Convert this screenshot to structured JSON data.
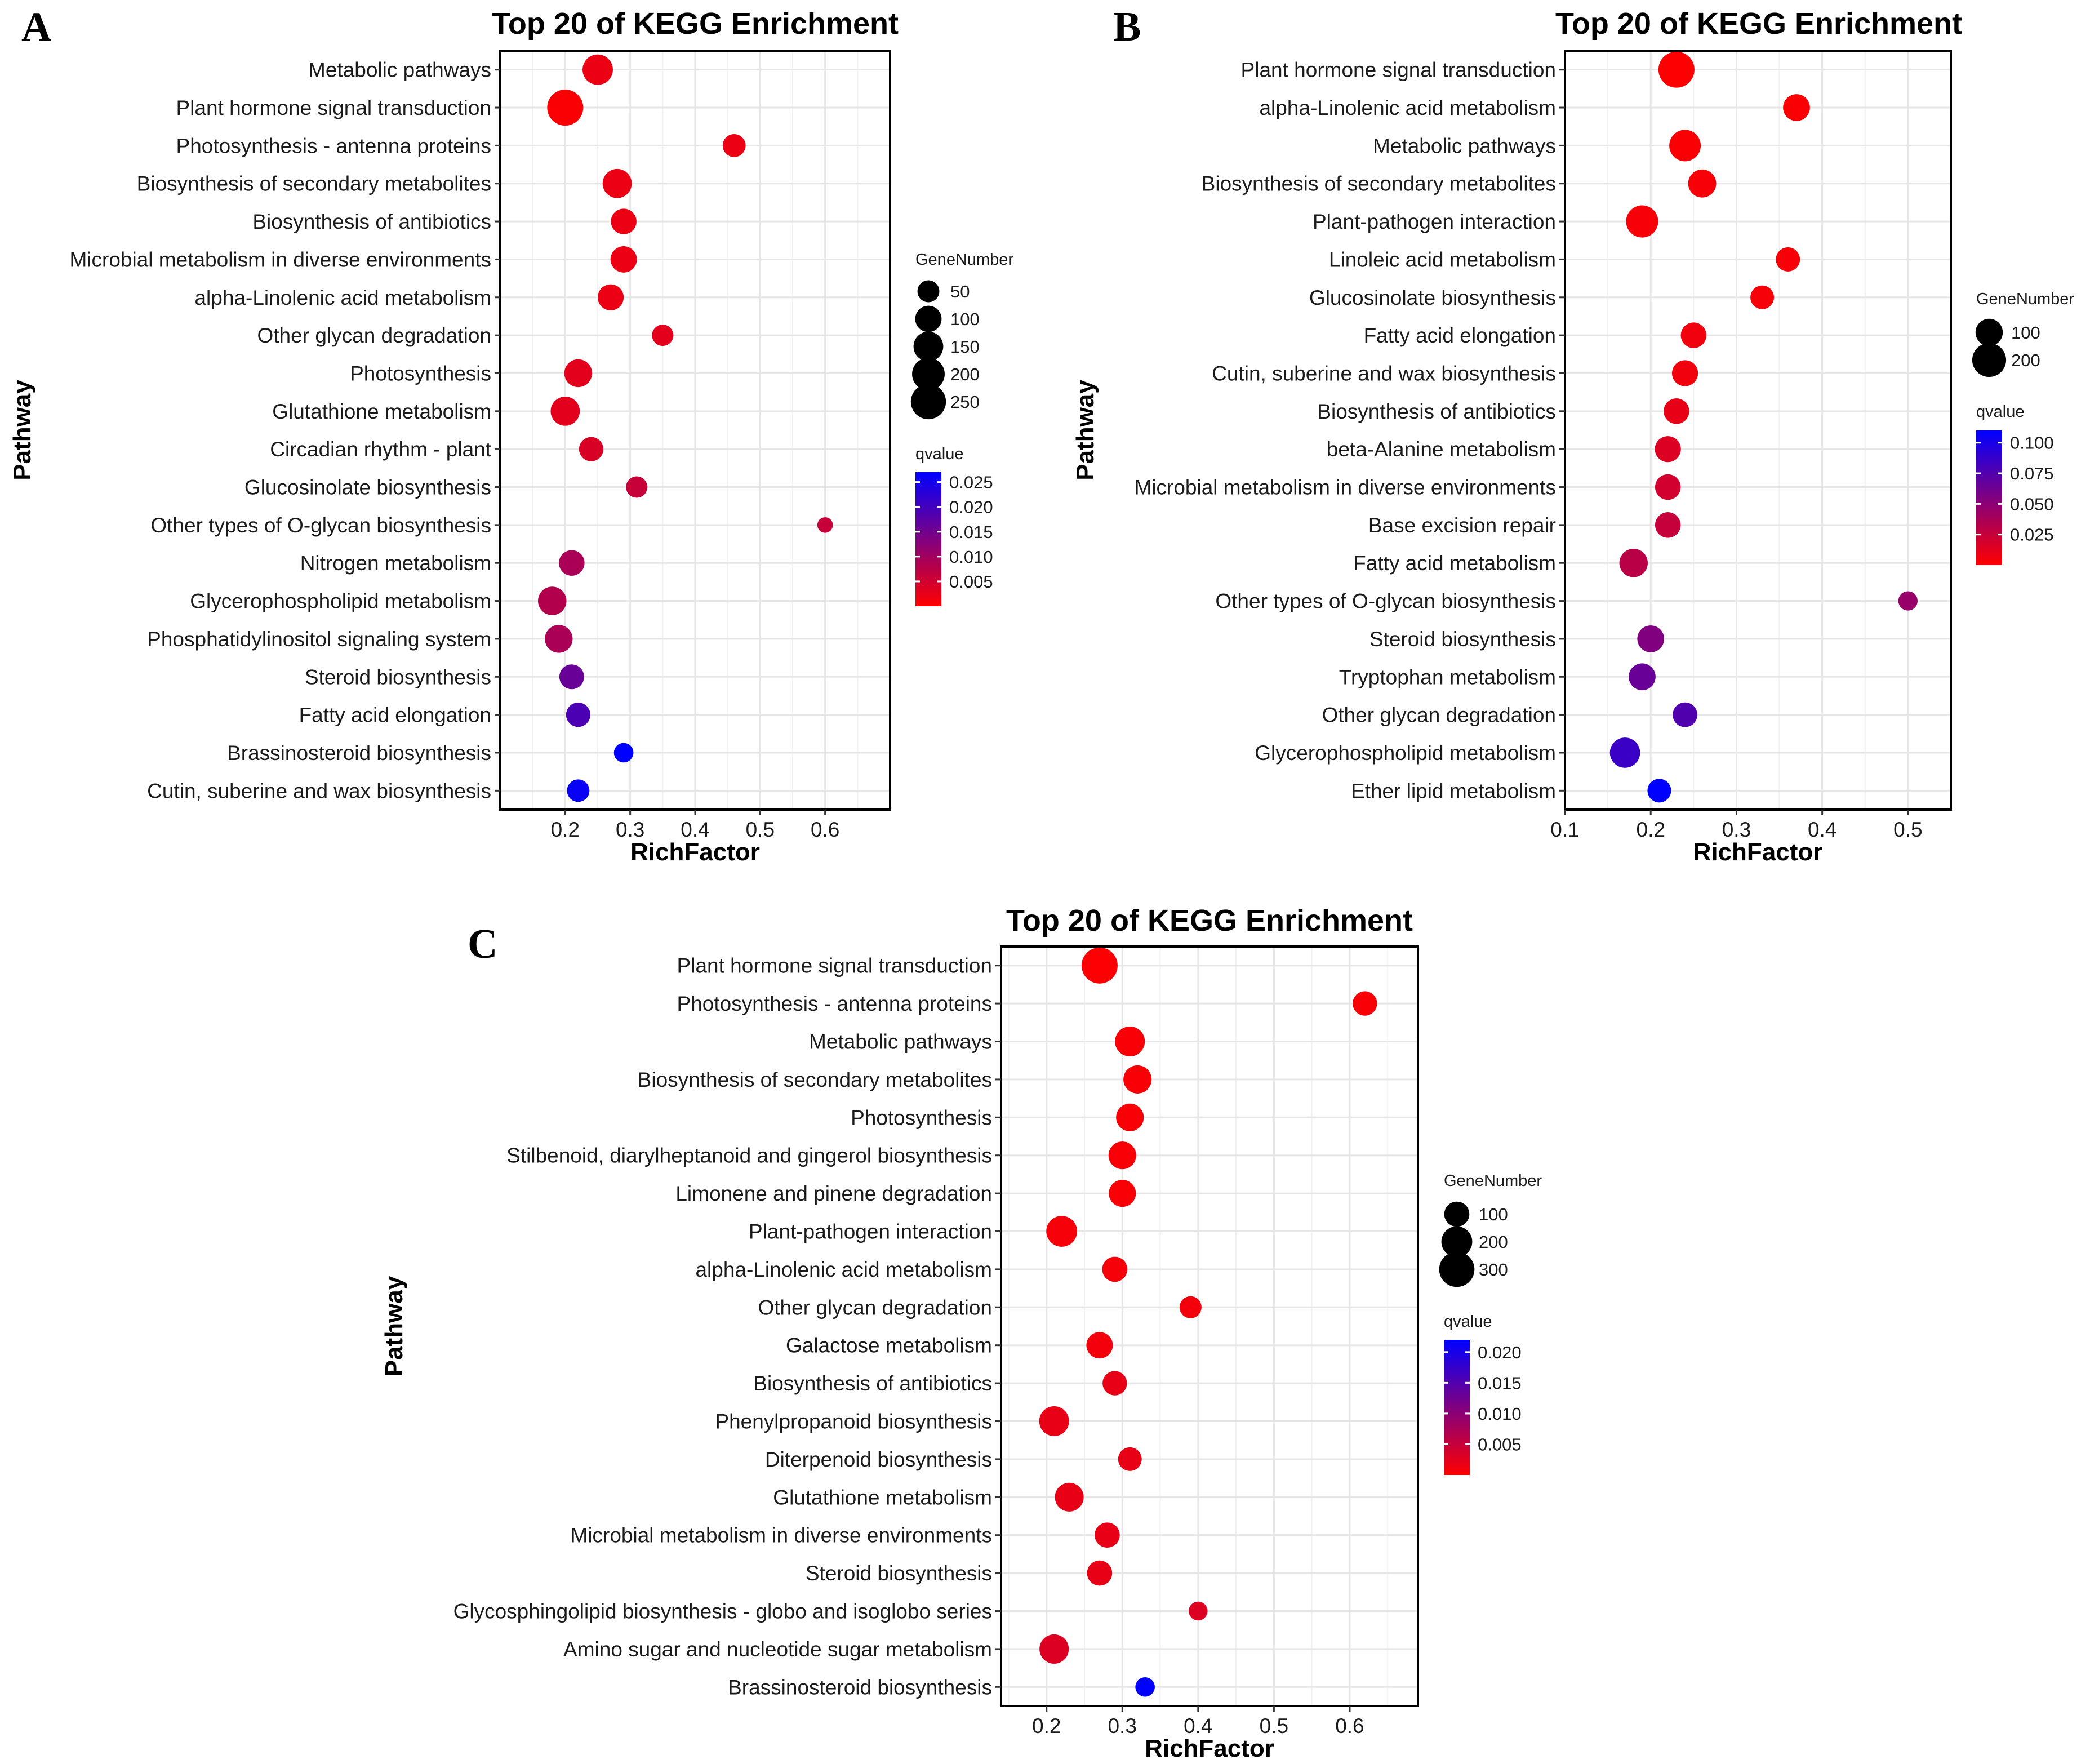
{
  "panels": [
    {
      "label": "A"
    },
    {
      "label": "B"
    },
    {
      "label": "C"
    }
  ],
  "chart_data": [
    {
      "type": "scatter",
      "panel": "A",
      "title": "Top 20 of KEGG Enrichment",
      "xlabel": "RichFactor",
      "ylabel": "Pathway",
      "xlim": [
        0.1,
        0.7
      ],
      "xticks": [
        0.2,
        0.3,
        0.4,
        0.5,
        0.6
      ],
      "xtick_labels": [
        "0.2",
        "0.3",
        "0.4",
        "0.5",
        "0.6"
      ],
      "pathways": [
        "Metabolic pathways",
        "Plant hormone signal transduction",
        "Photosynthesis - antenna proteins",
        "Biosynthesis of secondary metabolites",
        "Biosynthesis of antibiotics",
        "Microbial metabolism in diverse environments",
        "alpha-Linolenic acid metabolism",
        "Other glycan degradation",
        "Photosynthesis",
        "Glutathione metabolism",
        "Circadian rhythm - plant",
        "Glucosinolate biosynthesis",
        "Other types of O-glycan biosynthesis",
        "Nitrogen metabolism",
        "Glycerophospholipid metabolism",
        "Phosphatidylinositol signaling system",
        "Steroid biosynthesis",
        "Fatty acid elongation",
        "Brassinosteroid biosynthesis",
        "Cutin, suberine and wax biosynthesis"
      ],
      "rich_factor": [
        0.25,
        0.2,
        0.46,
        0.28,
        0.29,
        0.29,
        0.27,
        0.35,
        0.22,
        0.2,
        0.24,
        0.31,
        0.6,
        0.21,
        0.18,
        0.19,
        0.21,
        0.22,
        0.29,
        0.22
      ],
      "gene_number": [
        160,
        270,
        60,
        140,
        90,
        100,
        95,
        45,
        120,
        140,
        75,
        45,
        8,
        90,
        130,
        120,
        80,
        75,
        30,
        55
      ],
      "qvalue": [
        0.002,
        0.0005,
        0.002,
        0.002,
        0.002,
        0.002,
        0.002,
        0.003,
        0.003,
        0.003,
        0.004,
        0.006,
        0.006,
        0.009,
        0.008,
        0.009,
        0.016,
        0.019,
        0.027,
        0.026
      ],
      "size_legend": {
        "title": "GeneNumber",
        "values": [
          50,
          100,
          150,
          200,
          250
        ],
        "labels": [
          "50",
          "100",
          "150",
          "200",
          "250"
        ]
      },
      "color_legend": {
        "title": "qvalue",
        "min": 0.0,
        "max": 0.027,
        "ticks": [
          0.025,
          0.02,
          0.015,
          0.01,
          0.005
        ],
        "tick_labels": [
          "0.025",
          "0.020",
          "0.015",
          "0.010",
          "0.005"
        ],
        "low_color": "#ff0000",
        "high_color": "#0000ff"
      }
    },
    {
      "type": "scatter",
      "panel": "B",
      "title": "Top 20 of KEGG Enrichment",
      "xlabel": "RichFactor",
      "ylabel": "Pathway",
      "xlim": [
        0.1,
        0.55
      ],
      "xticks": [
        0.1,
        0.2,
        0.3,
        0.4,
        0.5
      ],
      "xtick_labels": [
        "0.1",
        "0.2",
        "0.3",
        "0.4",
        "0.5"
      ],
      "pathways": [
        "Plant hormone signal transduction",
        "alpha-Linolenic acid metabolism",
        "Metabolic pathways",
        "Biosynthesis of secondary metabolites",
        "Plant-pathogen interaction",
        "Linoleic acid metabolism",
        "Glucosinolate biosynthesis",
        "Fatty acid elongation",
        "Cutin, suberine and wax biosynthesis",
        "Biosynthesis of antibiotics",
        "beta-Alanine metabolism",
        "Microbial metabolism in diverse environments",
        "Base excision repair",
        "Fatty acid metabolism",
        "Other types of O-glycan biosynthesis",
        "Steroid biosynthesis",
        "Tryptophan metabolism",
        "Other glycan degradation",
        "Glycerophospholipid metabolism",
        "Ether lipid metabolism"
      ],
      "rich_factor": [
        0.23,
        0.37,
        0.24,
        0.26,
        0.19,
        0.36,
        0.33,
        0.25,
        0.24,
        0.23,
        0.22,
        0.22,
        0.22,
        0.18,
        0.5,
        0.2,
        0.19,
        0.24,
        0.17,
        0.21
      ],
      "gene_number": [
        240,
        95,
        160,
        110,
        170,
        65,
        60,
        80,
        85,
        80,
        85,
        80,
        80,
        115,
        25,
        95,
        95,
        70,
        140,
        60
      ],
      "qvalue": [
        0.001,
        0.002,
        0.002,
        0.003,
        0.003,
        0.003,
        0.004,
        0.006,
        0.006,
        0.01,
        0.015,
        0.02,
        0.025,
        0.03,
        0.045,
        0.055,
        0.065,
        0.075,
        0.085,
        0.11
      ],
      "size_legend": {
        "title": "GeneNumber",
        "values": [
          100,
          200
        ],
        "labels": [
          "100",
          "200"
        ]
      },
      "color_legend": {
        "title": "qvalue",
        "min": 0.0,
        "max": 0.11,
        "ticks": [
          0.1,
          0.075,
          0.05,
          0.025
        ],
        "tick_labels": [
          "0.100",
          "0.075",
          "0.050",
          "0.025"
        ],
        "low_color": "#ff0000",
        "high_color": "#0000ff"
      }
    },
    {
      "type": "scatter",
      "panel": "C",
      "title": "Top 20 of KEGG Enrichment",
      "xlabel": "RichFactor",
      "ylabel": "Pathway",
      "xlim": [
        0.14,
        0.69
      ],
      "xticks": [
        0.2,
        0.3,
        0.4,
        0.5,
        0.6
      ],
      "xtick_labels": [
        "0.2",
        "0.3",
        "0.4",
        "0.5",
        "0.6"
      ],
      "pathways": [
        "Plant hormone signal transduction",
        "Photosynthesis - antenna proteins",
        "Metabolic pathways",
        "Biosynthesis of secondary metabolites",
        "Photosynthesis",
        "Stilbenoid, diarylheptanoid and gingerol biosynthesis",
        "Limonene and pinene degradation",
        "Plant-pathogen interaction",
        "alpha-Linolenic acid metabolism",
        "Other glycan degradation",
        "Galactose metabolism",
        "Biosynthesis of antibiotics",
        "Phenylpropanoid biosynthesis",
        "Diterpenoid biosynthesis",
        "Glutathione metabolism",
        "Microbial metabolism in diverse environments",
        "Steroid biosynthesis",
        "Glycosphingolipid biosynthesis - globo and isoglobo series",
        "Amino sugar and nucleotide sugar metabolism",
        "Brassinosteroid biosynthesis"
      ],
      "rich_factor": [
        0.27,
        0.62,
        0.31,
        0.32,
        0.31,
        0.3,
        0.3,
        0.22,
        0.29,
        0.39,
        0.27,
        0.29,
        0.21,
        0.31,
        0.23,
        0.28,
        0.27,
        0.4,
        0.21,
        0.33
      ],
      "gene_number": [
        320,
        90,
        180,
        150,
        140,
        140,
        130,
        200,
        100,
        60,
        120,
        90,
        180,
        80,
        160,
        100,
        100,
        30,
        170,
        35
      ],
      "qvalue": [
        0.0003,
        0.0005,
        0.0005,
        0.0005,
        0.0005,
        0.0005,
        0.0005,
        0.0008,
        0.0008,
        0.001,
        0.001,
        0.002,
        0.002,
        0.002,
        0.002,
        0.002,
        0.002,
        0.003,
        0.003,
        0.022
      ],
      "size_legend": {
        "title": "GeneNumber",
        "values": [
          100,
          200,
          300
        ],
        "labels": [
          "100",
          "200",
          "300"
        ]
      },
      "color_legend": {
        "title": "qvalue",
        "min": 0.0,
        "max": 0.022,
        "ticks": [
          0.02,
          0.015,
          0.01,
          0.005
        ],
        "tick_labels": [
          "0.020",
          "0.015",
          "0.010",
          "0.005"
        ],
        "low_color": "#ff0000",
        "high_color": "#0000ff"
      }
    }
  ]
}
